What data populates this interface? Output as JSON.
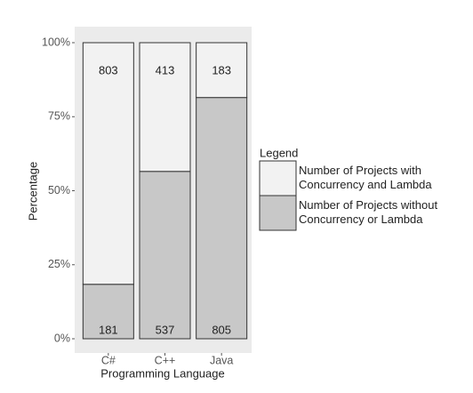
{
  "chart_data": {
    "type": "bar",
    "stacking": "percent",
    "y_label": "Percentage",
    "x_label": "Programming Language",
    "legend_title": "Legend",
    "categories": [
      "C#",
      "C++",
      "Java"
    ],
    "series": [
      {
        "name": "Number of Projects with\nConcurrency and Lambda",
        "color": "#f2f2f2",
        "values": [
          803,
          413,
          183
        ]
      },
      {
        "name": "Number of Projects without\nConcurrency or Lambda",
        "color": "#c8c8c8",
        "values": [
          181,
          537,
          805
        ]
      }
    ],
    "ylim": [
      0,
      100
    ],
    "yticks": [
      {
        "value": 0,
        "label": "0%"
      },
      {
        "value": 25,
        "label": "25%"
      },
      {
        "value": 50,
        "label": "50%"
      },
      {
        "value": 75,
        "label": "75%"
      },
      {
        "value": 100,
        "label": "100%"
      }
    ],
    "legend_position": "right"
  }
}
